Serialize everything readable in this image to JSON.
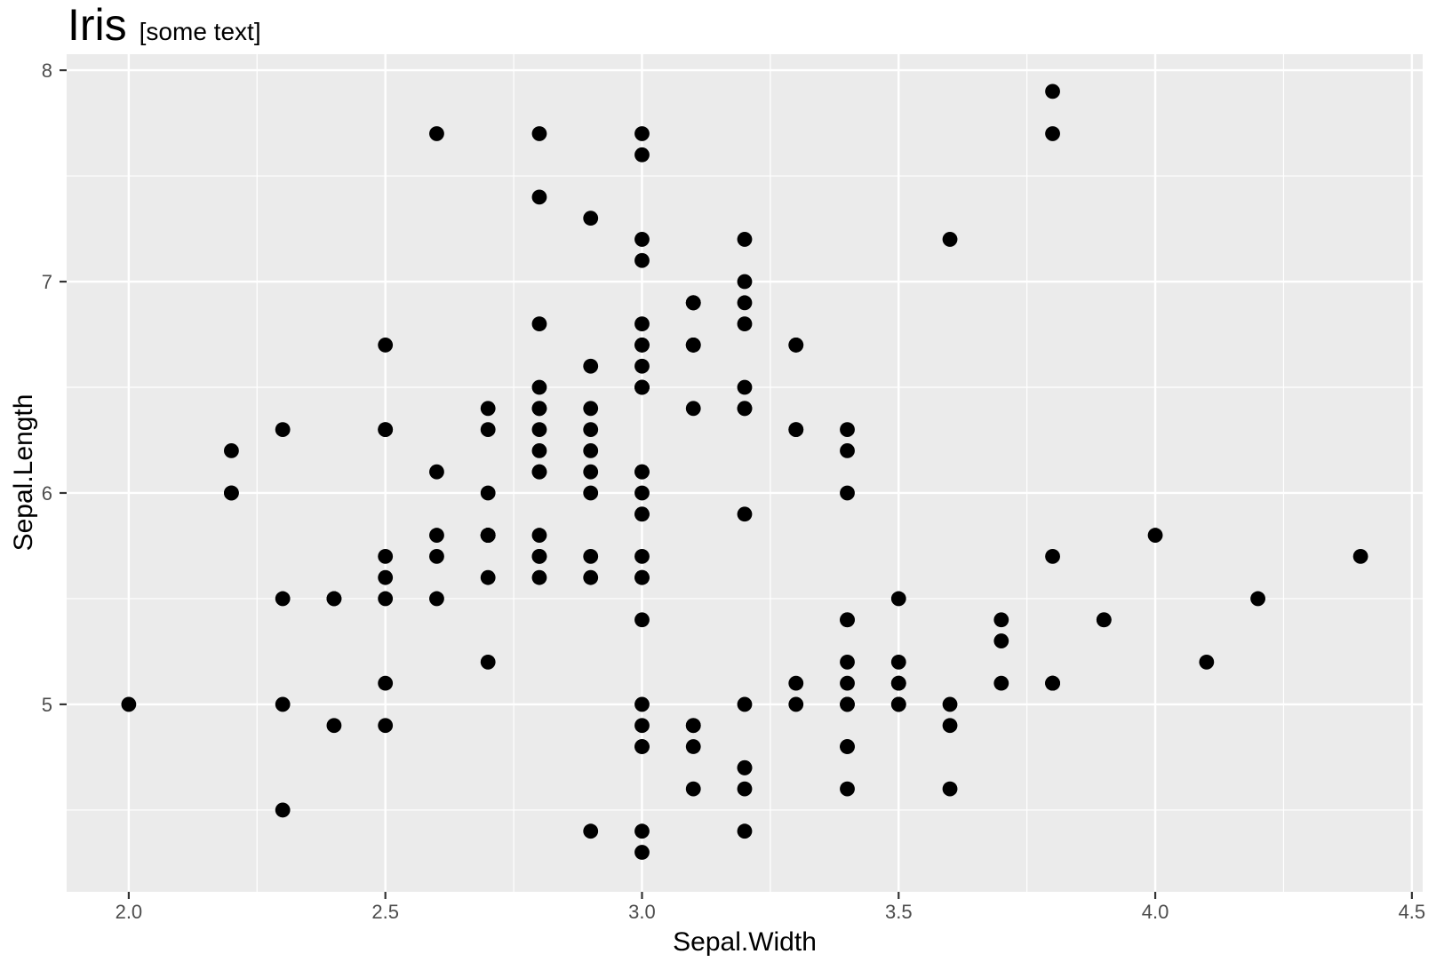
{
  "title": {
    "note": ""
  },
  "colors": {
    "background": "#FFFFFF",
    "panel_bg": "#EBEBEB",
    "grid": "#FFFFFF",
    "point": "#000000",
    "tick_label": "#4D4D4D",
    "tick_mark": "#333333",
    "axis_title": "#000000",
    "title": "#000000"
  },
  "chart_data": {
    "type": "scatter",
    "title": "Iris",
    "subtitle": "[some text]",
    "xlabel": "Sepal.Width",
    "ylabel": "Sepal.Length",
    "xlim": [
      1.879,
      4.521
    ],
    "ylim": [
      4.113,
      8.076
    ],
    "x_ticks": [
      2.0,
      2.5,
      3.0,
      3.5,
      4.0,
      4.5
    ],
    "x_tick_labels": [
      "2.0",
      "2.5",
      "3.0",
      "3.5",
      "4.0",
      "4.5"
    ],
    "y_ticks": [
      5,
      6,
      7,
      8
    ],
    "y_tick_labels": [
      "5",
      "6",
      "7",
      "8"
    ],
    "x_minor": [
      2.25,
      2.75,
      3.25,
      3.75,
      4.25
    ],
    "y_minor": [
      4.5,
      5.5,
      6.5,
      7.5
    ],
    "grid": true,
    "legend": "none",
    "point_radius": 8.4,
    "x_field": "Sepal.Width",
    "y_field": "Sepal.Length",
    "points": [
      [
        3.5,
        5.1
      ],
      [
        3.0,
        4.9
      ],
      [
        3.2,
        4.7
      ],
      [
        3.1,
        4.6
      ],
      [
        3.6,
        5.0
      ],
      [
        3.9,
        5.4
      ],
      [
        3.4,
        4.6
      ],
      [
        3.4,
        5.0
      ],
      [
        2.9,
        4.4
      ],
      [
        3.1,
        4.9
      ],
      [
        3.7,
        5.4
      ],
      [
        3.4,
        4.8
      ],
      [
        3.0,
        4.8
      ],
      [
        3.0,
        4.3
      ],
      [
        4.0,
        5.8
      ],
      [
        4.4,
        5.7
      ],
      [
        3.9,
        5.4
      ],
      [
        3.5,
        5.1
      ],
      [
        3.8,
        5.7
      ],
      [
        3.8,
        5.1
      ],
      [
        3.4,
        5.4
      ],
      [
        3.7,
        5.1
      ],
      [
        3.6,
        4.6
      ],
      [
        3.3,
        5.1
      ],
      [
        3.4,
        4.8
      ],
      [
        3.0,
        5.0
      ],
      [
        3.4,
        5.0
      ],
      [
        3.5,
        5.2
      ],
      [
        3.4,
        5.2
      ],
      [
        3.2,
        4.7
      ],
      [
        3.1,
        4.8
      ],
      [
        3.4,
        5.4
      ],
      [
        4.1,
        5.2
      ],
      [
        4.2,
        5.5
      ],
      [
        3.1,
        4.9
      ],
      [
        3.2,
        5.0
      ],
      [
        3.5,
        5.5
      ],
      [
        3.6,
        4.9
      ],
      [
        3.0,
        4.4
      ],
      [
        3.4,
        5.1
      ],
      [
        3.5,
        5.0
      ],
      [
        2.3,
        4.5
      ],
      [
        3.2,
        4.4
      ],
      [
        3.5,
        5.0
      ],
      [
        3.8,
        5.1
      ],
      [
        3.0,
        4.8
      ],
      [
        3.8,
        5.1
      ],
      [
        3.2,
        4.6
      ],
      [
        3.7,
        5.3
      ],
      [
        3.3,
        5.0
      ],
      [
        3.2,
        7.0
      ],
      [
        3.2,
        6.4
      ],
      [
        3.1,
        6.9
      ],
      [
        2.3,
        5.5
      ],
      [
        2.8,
        6.5
      ],
      [
        2.8,
        5.7
      ],
      [
        3.3,
        6.3
      ],
      [
        2.4,
        4.9
      ],
      [
        2.9,
        6.6
      ],
      [
        2.7,
        5.2
      ],
      [
        2.0,
        5.0
      ],
      [
        3.0,
        5.9
      ],
      [
        2.2,
        6.0
      ],
      [
        2.9,
        6.1
      ],
      [
        2.9,
        5.6
      ],
      [
        3.1,
        6.7
      ],
      [
        3.0,
        5.6
      ],
      [
        2.7,
        5.8
      ],
      [
        2.2,
        6.2
      ],
      [
        2.5,
        5.6
      ],
      [
        3.2,
        5.9
      ],
      [
        2.8,
        6.1
      ],
      [
        2.5,
        6.3
      ],
      [
        2.8,
        6.1
      ],
      [
        2.9,
        6.4
      ],
      [
        3.0,
        6.6
      ],
      [
        2.8,
        6.8
      ],
      [
        3.0,
        6.7
      ],
      [
        2.9,
        6.0
      ],
      [
        2.6,
        5.7
      ],
      [
        2.4,
        5.5
      ],
      [
        2.4,
        5.5
      ],
      [
        2.7,
        5.8
      ],
      [
        2.7,
        6.0
      ],
      [
        3.0,
        5.4
      ],
      [
        3.4,
        6.0
      ],
      [
        3.1,
        6.7
      ],
      [
        2.3,
        6.3
      ],
      [
        3.0,
        5.6
      ],
      [
        2.5,
        5.5
      ],
      [
        2.6,
        5.5
      ],
      [
        3.0,
        6.1
      ],
      [
        2.6,
        5.8
      ],
      [
        2.3,
        5.0
      ],
      [
        2.7,
        5.6
      ],
      [
        3.0,
        5.7
      ],
      [
        2.9,
        5.7
      ],
      [
        2.9,
        6.2
      ],
      [
        2.5,
        5.1
      ],
      [
        2.8,
        5.7
      ],
      [
        3.3,
        6.3
      ],
      [
        2.7,
        5.8
      ],
      [
        3.0,
        7.1
      ],
      [
        2.9,
        6.3
      ],
      [
        3.0,
        6.5
      ],
      [
        3.0,
        7.6
      ],
      [
        2.5,
        4.9
      ],
      [
        2.9,
        7.3
      ],
      [
        2.5,
        6.7
      ],
      [
        3.6,
        7.2
      ],
      [
        3.2,
        6.5
      ],
      [
        2.7,
        6.4
      ],
      [
        3.0,
        6.8
      ],
      [
        2.5,
        5.7
      ],
      [
        2.8,
        5.8
      ],
      [
        3.2,
        6.4
      ],
      [
        3.0,
        6.5
      ],
      [
        3.8,
        7.7
      ],
      [
        2.6,
        7.7
      ],
      [
        2.2,
        6.0
      ],
      [
        3.2,
        6.9
      ],
      [
        2.8,
        5.6
      ],
      [
        2.8,
        7.7
      ],
      [
        2.7,
        6.3
      ],
      [
        3.3,
        6.7
      ],
      [
        3.2,
        7.2
      ],
      [
        2.8,
        6.2
      ],
      [
        3.0,
        6.1
      ],
      [
        2.8,
        6.4
      ],
      [
        3.0,
        7.2
      ],
      [
        2.8,
        7.4
      ],
      [
        3.8,
        7.9
      ],
      [
        2.8,
        6.4
      ],
      [
        2.8,
        6.3
      ],
      [
        2.6,
        6.1
      ],
      [
        3.0,
        7.7
      ],
      [
        3.4,
        6.3
      ],
      [
        3.1,
        6.4
      ],
      [
        3.0,
        6.0
      ],
      [
        3.1,
        6.9
      ],
      [
        3.1,
        6.7
      ],
      [
        3.1,
        6.9
      ],
      [
        2.7,
        5.8
      ],
      [
        3.2,
        6.8
      ],
      [
        3.3,
        6.7
      ],
      [
        3.0,
        6.7
      ],
      [
        2.5,
        6.3
      ],
      [
        3.0,
        6.5
      ],
      [
        3.4,
        6.2
      ],
      [
        3.0,
        5.9
      ]
    ]
  }
}
